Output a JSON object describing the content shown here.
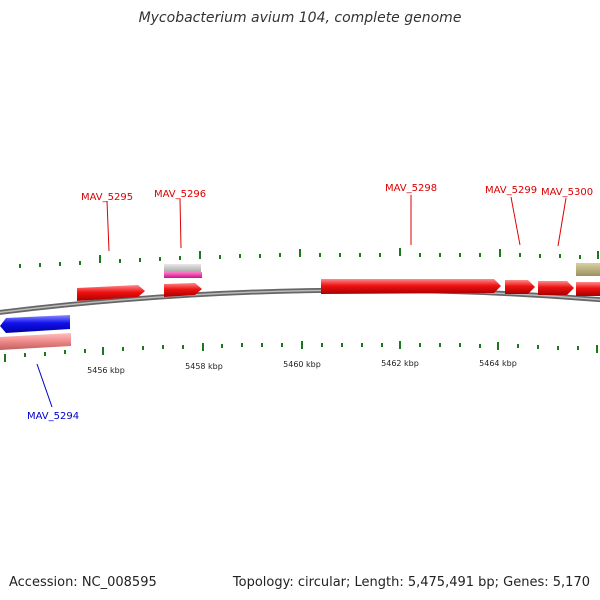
{
  "title": "Mycobacterium avium 104, complete genome",
  "footer": {
    "accession": "Accession: NC_008595",
    "summary": "Topology: circular; Length: 5,475,491 bp; Genes: 5,170"
  },
  "ticks": [
    "5456 kbp",
    "5458 kbp",
    "5460 kbp",
    "5462 kbp",
    "5464 kbp"
  ],
  "gene_labels": {
    "MAV_5294": "MAV_5294",
    "MAV_5295": "MAV_5295",
    "MAV_5296": "MAV_5296",
    "MAV_5298": "MAV_5298",
    "MAV_5299": "MAV_5299",
    "MAV_5300": "MAV_5300"
  },
  "colors": {
    "forward_cds": "#ee1111",
    "reverse_cds": "#1111ee",
    "reverse_rna": "#ee8888",
    "forward_rna": "#bbbbbb",
    "forward_misc": "#ee22aa",
    "forward_other": "#b8b070",
    "backbone": "#888888",
    "tick": "#1a7a1a",
    "forward_label": "#dd0000",
    "reverse_label": "#0000cc"
  }
}
